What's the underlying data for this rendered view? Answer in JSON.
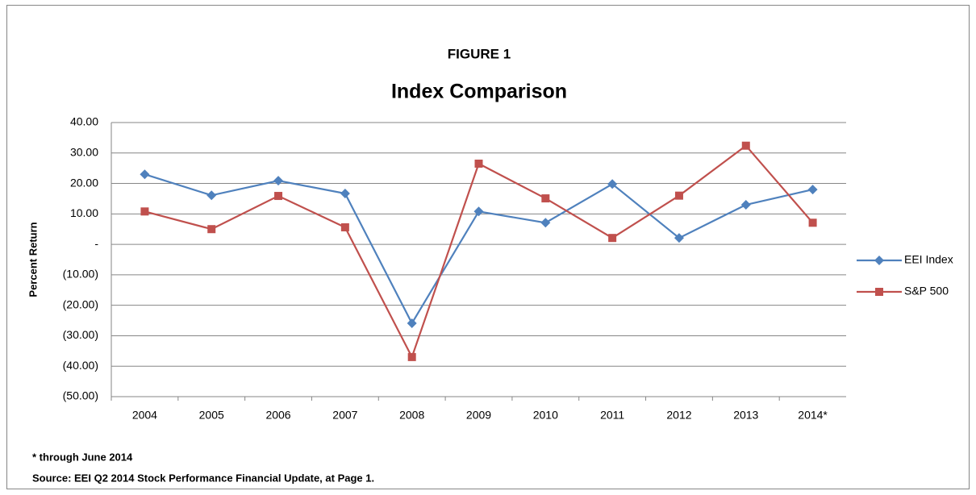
{
  "chart_data": {
    "type": "line",
    "supertitle": "FIGURE 1",
    "title": "Index Comparison",
    "y_label": "Percent Return",
    "categories": [
      "2004",
      "2005",
      "2006",
      "2007",
      "2008",
      "2009",
      "2010",
      "2011",
      "2012",
      "2013",
      "2014*"
    ],
    "series": [
      {
        "name": "EEI Index",
        "color": "#4f81bd",
        "marker": "diamond",
        "values": [
          23.0,
          16.1,
          20.9,
          16.7,
          -25.9,
          10.8,
          7.1,
          19.8,
          2.1,
          13.0,
          18.0
        ]
      },
      {
        "name": "S&P 500",
        "color": "#c0504d",
        "marker": "square",
        "values": [
          10.8,
          5.0,
          15.9,
          5.6,
          -37.0,
          26.5,
          15.1,
          2.1,
          16.0,
          32.4,
          7.1
        ]
      }
    ],
    "ylim": [
      -50,
      40
    ],
    "yticks": [
      {
        "value": -50,
        "label": "(50.00)"
      },
      {
        "value": -40,
        "label": "(40.00)"
      },
      {
        "value": -30,
        "label": "(30.00)"
      },
      {
        "value": -20,
        "label": "(20.00)"
      },
      {
        "value": -10,
        "label": "(10.00)"
      },
      {
        "value": 0,
        "label": "-"
      },
      {
        "value": 10,
        "label": "10.00"
      },
      {
        "value": 20,
        "label": "20.00"
      },
      {
        "value": 30,
        "label": "30.00"
      },
      {
        "value": 40,
        "label": "40.00"
      }
    ],
    "grid": true,
    "legend": "right",
    "notes": [
      "* through June 2014",
      "Source: EEI Q2 2014 Stock Performance Financial Update, at Page 1."
    ]
  }
}
